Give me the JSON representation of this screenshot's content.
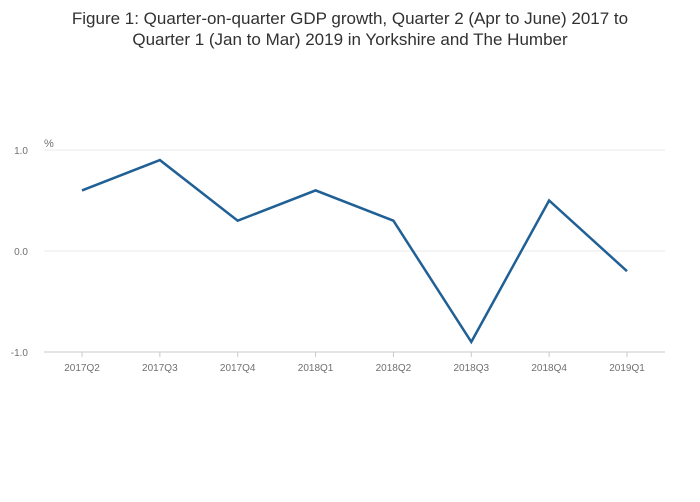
{
  "title": {
    "line1": "Figure 1: Quarter-on-quarter GDP growth, Quarter 2 (Apr to June) 2017 to",
    "line2": "Quarter 1 (Jan to Mar) 2019 in Yorkshire and The Humber"
  },
  "colors": {
    "series": "#206095",
    "grid": "#e8e8e8",
    "axis": "#c9c9cf",
    "tick_text": "#707071"
  },
  "chart_data": {
    "type": "line",
    "title": "Figure 1: Quarter-on-quarter GDP growth, Quarter 2 (Apr to June) 2017 to Quarter 1 (Jan to Mar) 2019 in Yorkshire and The Humber",
    "ylabel": "%",
    "xlabel": "",
    "categories": [
      "2017Q2",
      "2017Q3",
      "2017Q4",
      "2018Q1",
      "2018Q2",
      "2018Q3",
      "2018Q4",
      "2019Q1"
    ],
    "series": [
      {
        "values": [
          0.6,
          0.9,
          0.3,
          0.6,
          0.3,
          -0.9,
          0.5,
          -0.2
        ]
      }
    ],
    "ylim": [
      -1.0,
      1.0
    ],
    "yticks": [
      -1.0,
      0.0,
      1.0
    ],
    "ytick_labels": [
      "-1.0",
      "0.0",
      "1.0"
    ],
    "grid": true,
    "legend": false
  }
}
